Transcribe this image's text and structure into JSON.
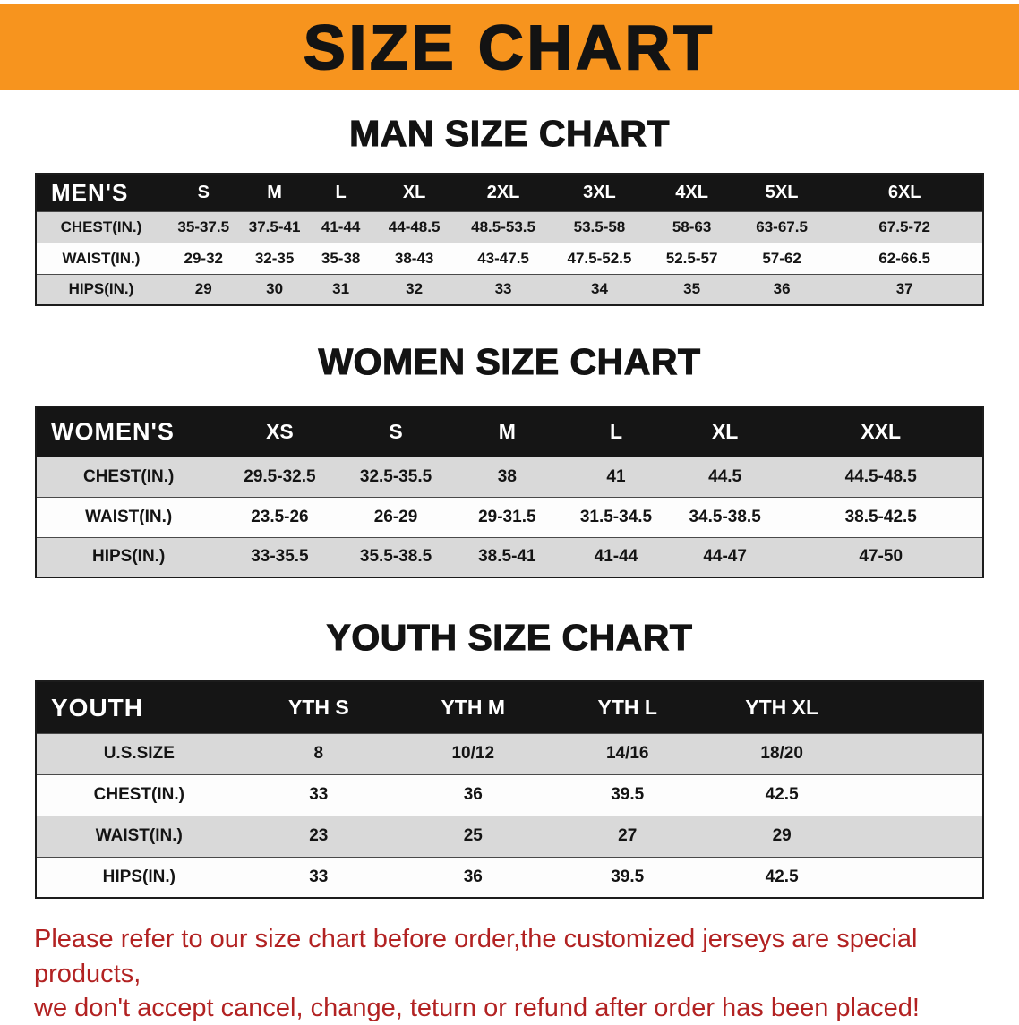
{
  "theme": {
    "banner_bg": "#F7941E",
    "header_row_bg": "#151515",
    "header_row_text": "#FFFFFF",
    "stripe_row_bg": "#D9D9D9",
    "footer_text_color": "#B22222"
  },
  "banner": {
    "title": "SIZE CHART"
  },
  "sections": [
    {
      "id": "men",
      "heading": "MAN SIZE CHART",
      "table": {
        "header": [
          "MEN'S",
          "S",
          "M",
          "L",
          "XL",
          "2XL",
          "3XL",
          "4XL",
          "5XL",
          "6XL"
        ],
        "rows": [
          {
            "label": "CHEST(IN.)",
            "values": [
              "35-37.5",
              "37.5-41",
              "41-44",
              "44-48.5",
              "48.5-53.5",
              "53.5-58",
              "58-63",
              "63-67.5",
              "67.5-72"
            ]
          },
          {
            "label": "WAIST(IN.)",
            "values": [
              "29-32",
              "32-35",
              "35-38",
              "38-43",
              "43-47.5",
              "47.5-52.5",
              "52.5-57",
              "57-62",
              "62-66.5"
            ]
          },
          {
            "label": "HIPS(IN.)",
            "values": [
              "29",
              "30",
              "31",
              "32",
              "33",
              "34",
              "35",
              "36",
              "37"
            ]
          }
        ]
      }
    },
    {
      "id": "women",
      "heading": "WOMEN SIZE CHART",
      "table": {
        "header": [
          "WOMEN'S",
          "XS",
          "S",
          "M",
          "L",
          "XL",
          "XXL"
        ],
        "rows": [
          {
            "label": "CHEST(IN.)",
            "values": [
              "29.5-32.5",
              "32.5-35.5",
              "38",
              "41",
              "44.5",
              "44.5-48.5"
            ]
          },
          {
            "label": "WAIST(IN.)",
            "values": [
              "23.5-26",
              "26-29",
              "29-31.5",
              "31.5-34.5",
              "34.5-38.5",
              "38.5-42.5"
            ]
          },
          {
            "label": "HIPS(IN.)",
            "values": [
              "33-35.5",
              "35.5-38.5",
              "38.5-41",
              "41-44",
              "44-47",
              "47-50"
            ]
          }
        ]
      }
    },
    {
      "id": "youth",
      "heading": "YOUTH SIZE CHART",
      "table": {
        "header": [
          "YOUTH",
          "YTH S",
          "YTH M",
          "YTH L",
          "YTH XL"
        ],
        "rows": [
          {
            "label": "U.S.SIZE",
            "values": [
              "8",
              "10/12",
              "14/16",
              "18/20"
            ]
          },
          {
            "label": "CHEST(IN.)",
            "values": [
              "33",
              "36",
              "39.5",
              "42.5"
            ]
          },
          {
            "label": "WAIST(IN.)",
            "values": [
              "23",
              "25",
              "27",
              "29"
            ]
          },
          {
            "label": "HIPS(IN.)",
            "values": [
              "33",
              "36",
              "39.5",
              "42.5"
            ]
          }
        ]
      }
    }
  ],
  "footer": {
    "lines": [
      "Please refer to our size chart before order,the customized jerseys are special products,",
      "we don't accept cancel, change, teturn or refund after order has been placed!"
    ]
  }
}
